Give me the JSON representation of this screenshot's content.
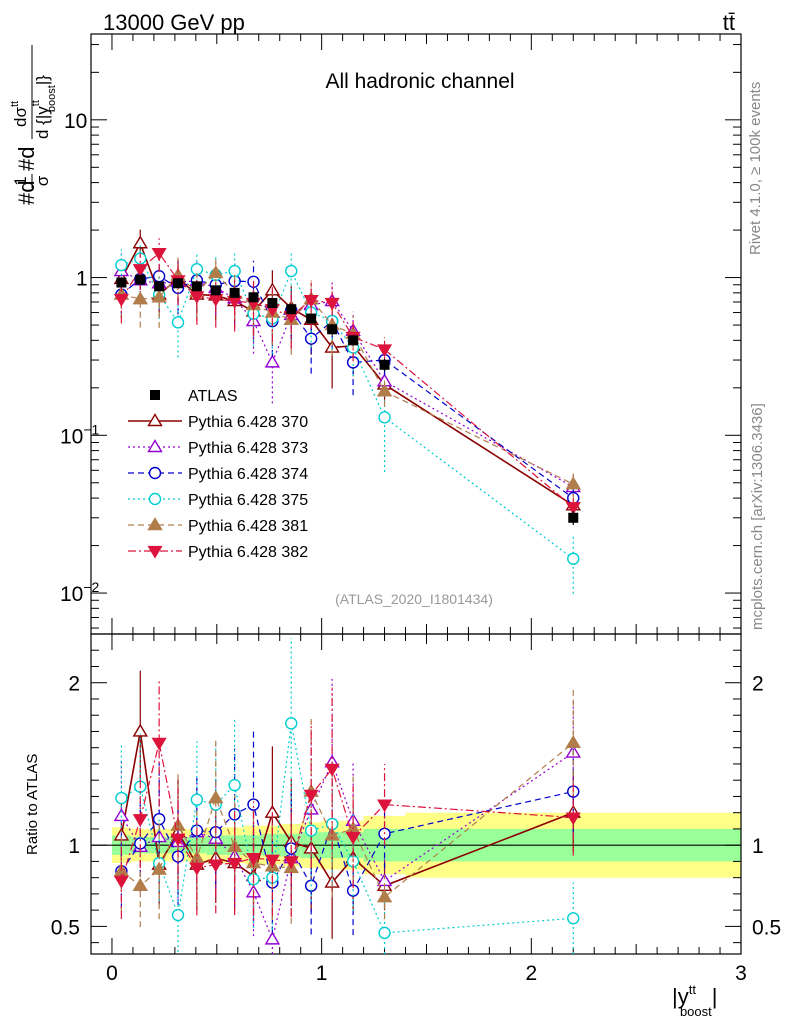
{
  "header": {
    "energy_label": "13000 GeV pp",
    "process_label": "tt̄"
  },
  "side_text": {
    "rivet": "Rivet 4.1.0, ≥ 100k events",
    "mcplots": "mcplots.cern.ch [arXiv:1306.3436]"
  },
  "chart_data": {
    "type": "line",
    "title": "All hadronic channel",
    "analysis_tag": "(ATLAS_2020_I1801434)",
    "ylabel": "#d1/σ#dd σ^{tt}/d{|y^{tt}_{boost}|}",
    "ylabel_main": "#d",
    "ylabel_frac_num": "1",
    "ylabel_frac_den": "σ",
    "ylabel_d2": "#d",
    "ylabel_num": "dσ",
    "ylabel_num_sup": "tt",
    "ylabel_den": "d {|y",
    "ylabel_den_sup": "tt",
    "ylabel_den_sub": "boost",
    "ylabel_den_close": "|}",
    "ratio_ylabel": "Ratio to ATLAS",
    "xlabel_main": "|y",
    "xlabel_sup": "tt",
    "xlabel_sub": "boost",
    "xlabel_close": "|",
    "xlim": [
      -0.1,
      3.0
    ],
    "ylim": [
      0.0055,
      35
    ],
    "yscale": "log",
    "ratio_ylim": [
      0.33,
      2.3
    ],
    "main_y_ticks": [
      {
        "value": 0.01,
        "base": "10",
        "exp": "−2"
      },
      {
        "value": 0.1,
        "base": "10",
        "exp": "−1"
      },
      {
        "value": 1,
        "base": "1",
        "exp": ""
      },
      {
        "value": 10,
        "base": "10",
        "exp": ""
      }
    ],
    "ratio_y_ticks": [
      {
        "value": 0.5,
        "label": "0.5"
      },
      {
        "value": 1,
        "label": "1"
      },
      {
        "value": 2,
        "label": "2"
      }
    ],
    "x_ticks": [
      {
        "value": 0,
        "label": "0"
      },
      {
        "value": 1,
        "label": "1"
      },
      {
        "value": 2,
        "label": "2"
      },
      {
        "value": 3,
        "label": "3"
      }
    ],
    "bins": [
      [
        0.0,
        0.09
      ],
      [
        0.09,
        0.18
      ],
      [
        0.18,
        0.27
      ],
      [
        0.27,
        0.36
      ],
      [
        0.36,
        0.45
      ],
      [
        0.45,
        0.54
      ],
      [
        0.54,
        0.63
      ],
      [
        0.63,
        0.72
      ],
      [
        0.72,
        0.81
      ],
      [
        0.81,
        0.9
      ],
      [
        0.9,
        1.0
      ],
      [
        1.0,
        1.1
      ],
      [
        1.1,
        1.2
      ],
      [
        1.2,
        1.4
      ],
      [
        1.4,
        3.0
      ]
    ],
    "x": [
      0.045,
      0.135,
      0.225,
      0.315,
      0.405,
      0.495,
      0.585,
      0.675,
      0.765,
      0.855,
      0.95,
      1.05,
      1.15,
      1.3,
      2.2
    ],
    "data": {
      "name": "ATLAS",
      "values": [
        0.93,
        0.97,
        0.88,
        0.92,
        0.88,
        0.83,
        0.8,
        0.75,
        0.69,
        0.63,
        0.55,
        0.47,
        0.4,
        0.28,
        0.03
      ],
      "stat_band_rel": [
        0.06,
        0.05,
        0.05,
        0.05,
        0.05,
        0.06,
        0.06,
        0.06,
        0.07,
        0.07,
        0.08,
        0.08,
        0.08,
        0.1,
        0.1
      ],
      "total_band_rel": [
        0.11,
        0.1,
        0.1,
        0.1,
        0.1,
        0.11,
        0.11,
        0.12,
        0.12,
        0.13,
        0.14,
        0.15,
        0.15,
        0.18,
        0.2
      ]
    },
    "series": [
      {
        "name": "Pythia 6.428 370",
        "color": "#8b0000",
        "marker": "triangle-up-open",
        "dash": "solid",
        "values": [
          0.98,
          1.65,
          0.78,
          0.99,
          0.78,
          0.77,
          0.71,
          0.61,
          0.83,
          0.64,
          0.54,
          0.36,
          0.37,
          0.21,
          0.036
        ],
        "err_rel": [
          0.25,
          0.22,
          0.28,
          0.3,
          0.32,
          0.3,
          0.32,
          0.36,
          0.34,
          0.38,
          0.4,
          0.45,
          0.36,
          0.2,
          0.2
        ]
      },
      {
        "name": "Pythia 6.428 373",
        "color": "#9400d3",
        "marker": "triangle-up-open",
        "dash": "dot",
        "values": [
          1.1,
          0.96,
          0.92,
          0.94,
          0.95,
          0.86,
          0.74,
          0.53,
          0.29,
          0.58,
          0.67,
          0.71,
          0.46,
          0.22,
          0.047
        ],
        "err_rel": [
          0.3,
          0.28,
          0.32,
          0.34,
          0.3,
          0.32,
          0.36,
          0.38,
          0.45,
          0.38,
          0.36,
          0.34,
          0.32,
          0.2,
          0.2
        ]
      },
      {
        "name": "Pythia 6.428 374",
        "color": "#0000cd",
        "marker": "circle-open",
        "dash": "dash",
        "values": [
          0.78,
          0.98,
          1.02,
          0.86,
          0.96,
          0.9,
          0.95,
          0.94,
          0.53,
          0.62,
          0.41,
          0.53,
          0.29,
          0.3,
          0.04
        ],
        "err_rel": [
          0.28,
          0.26,
          0.3,
          0.32,
          0.3,
          0.3,
          0.34,
          0.36,
          0.4,
          0.36,
          0.4,
          0.34,
          0.38,
          0.2,
          0.2
        ]
      },
      {
        "name": "Pythia 6.428 375",
        "color": "#00ced1",
        "marker": "circle-open",
        "dash": "dot",
        "values": [
          1.2,
          1.32,
          0.78,
          0.52,
          1.13,
          1.04,
          1.1,
          0.59,
          0.55,
          1.1,
          0.6,
          0.53,
          0.36,
          0.13,
          0.0165
        ],
        "err_rel": [
          0.26,
          0.24,
          0.3,
          0.4,
          0.28,
          0.3,
          0.3,
          0.38,
          0.4,
          0.3,
          0.4,
          0.34,
          0.34,
          0.55,
          0.4
        ]
      },
      {
        "name": "Pythia 6.428 381",
        "color": "#b07d4b",
        "marker": "triangle-up-filled",
        "dash": "dash",
        "values": [
          0.78,
          0.73,
          0.75,
          1.03,
          0.81,
          1.07,
          0.79,
          0.67,
          0.6,
          0.54,
          0.73,
          0.5,
          0.44,
          0.19,
          0.049
        ],
        "err_rel": [
          0.3,
          0.34,
          0.36,
          0.3,
          0.32,
          0.28,
          0.32,
          0.36,
          0.38,
          0.4,
          0.34,
          0.36,
          0.3,
          0.2,
          0.2
        ]
      },
      {
        "name": "Pythia 6.428 382",
        "color": "#dc143c",
        "marker": "triangle-down-filled",
        "dash": "dashdot",
        "values": [
          0.73,
          1.13,
          1.43,
          0.96,
          0.76,
          0.73,
          0.71,
          0.69,
          0.63,
          0.57,
          0.72,
          0.69,
          0.42,
          0.35,
          0.035
        ],
        "err_rel": [
          0.3,
          0.26,
          0.24,
          0.3,
          0.34,
          0.34,
          0.36,
          0.38,
          0.38,
          0.38,
          0.34,
          0.34,
          0.3,
          0.2,
          0.2
        ]
      }
    ],
    "ratio_series": [
      {
        "name": "Pythia 6.428 370",
        "values": [
          1.06,
          1.7,
          0.88,
          1.08,
          0.88,
          0.92,
          0.89,
          0.81,
          1.2,
          1.02,
          0.98,
          0.77,
          0.92,
          0.75,
          1.2
        ]
      },
      {
        "name": "Pythia 6.428 373",
        "values": [
          1.18,
          0.99,
          1.05,
          1.02,
          1.08,
          1.04,
          0.93,
          0.71,
          0.42,
          0.92,
          1.22,
          1.51,
          1.15,
          0.78,
          1.57
        ]
      },
      {
        "name": "Pythia 6.428 374",
        "values": [
          0.84,
          1.01,
          1.16,
          0.93,
          1.09,
          1.08,
          1.19,
          1.25,
          0.77,
          0.98,
          0.75,
          1.13,
          0.72,
          1.07,
          1.33
        ]
      },
      {
        "name": "Pythia 6.428 375",
        "values": [
          1.29,
          1.36,
          0.89,
          0.57,
          1.28,
          1.25,
          1.37,
          0.79,
          0.8,
          1.75,
          1.09,
          1.13,
          0.9,
          0.46,
          0.55
        ]
      },
      {
        "name": "Pythia 6.428 381",
        "values": [
          0.84,
          0.75,
          0.85,
          1.12,
          0.92,
          1.29,
          0.99,
          0.89,
          0.87,
          0.86,
          1.33,
          1.06,
          1.1,
          0.68,
          1.63
        ]
      },
      {
        "name": "Pythia 6.428 382",
        "values": [
          0.78,
          1.16,
          1.63,
          1.04,
          0.86,
          0.88,
          0.89,
          0.92,
          0.91,
          0.9,
          1.31,
          1.47,
          1.05,
          1.25,
          1.17
        ]
      }
    ],
    "legend_position": "left-middle"
  }
}
